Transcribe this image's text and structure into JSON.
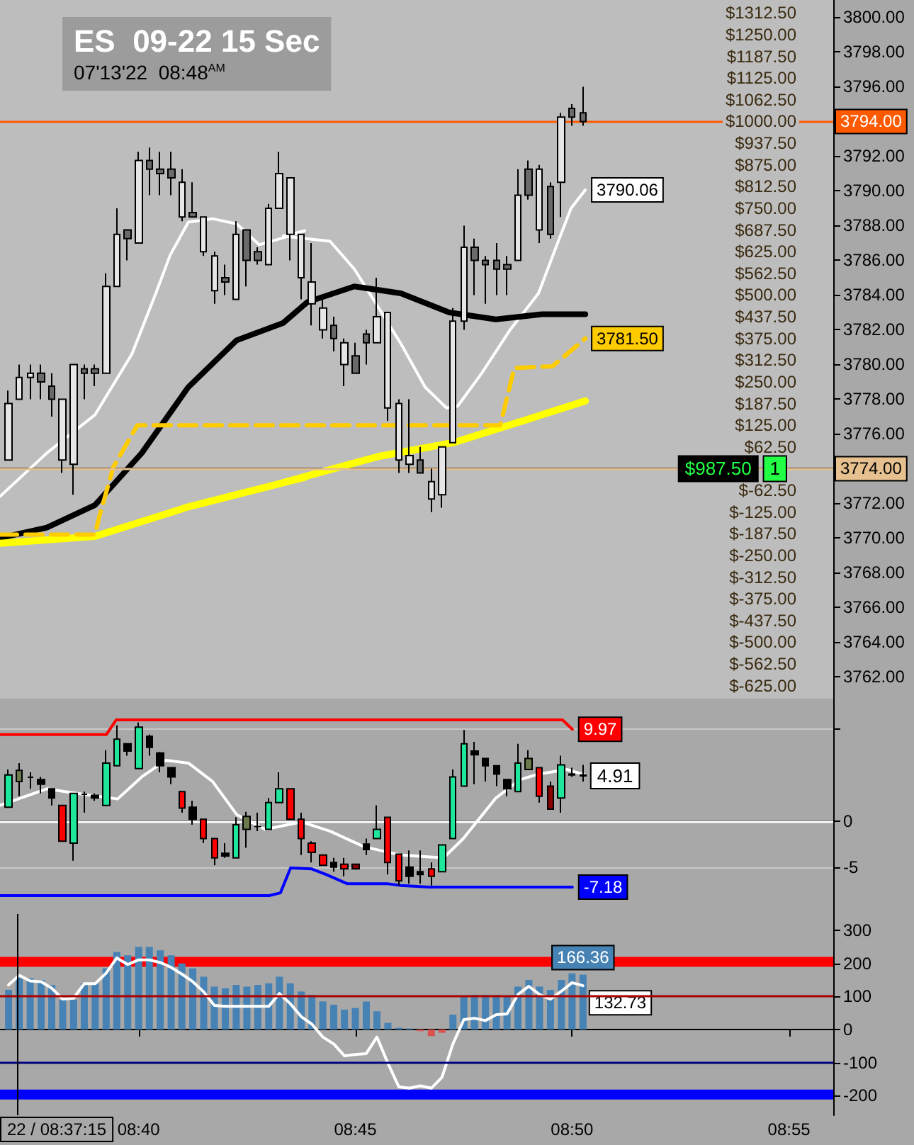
{
  "chart_data": [
    {
      "type": "candlestick",
      "title": "ES  09-22 15 Sec",
      "subtitle": "07'13'22  08:48$^{AM}$",
      "tick_labels": "y",
      "x": [
        8.6167,
        8.6208,
        8.625,
        8.6292,
        8.6333,
        8.6375,
        8.6417,
        8.6458,
        8.65,
        8.6542,
        8.6583,
        8.6625,
        8.6667,
        8.6708,
        8.675,
        8.6792,
        8.6833,
        8.6875,
        8.6917,
        8.6958,
        8.7,
        8.7042,
        8.7083,
        8.7125,
        8.7167,
        8.7208,
        8.725,
        8.7292,
        8.7333,
        8.7375,
        8.7417,
        8.7458,
        8.75,
        8.7542,
        8.7583,
        8.7625,
        8.7667,
        8.7708,
        8.775,
        8.7792,
        8.7833,
        8.7875,
        8.7917,
        8.7958,
        8.8,
        8.8042,
        8.8083,
        8.8125,
        8.8167,
        8.8208,
        8.825,
        8.8292,
        8.8333,
        8.8375
      ],
      "xlim": [
        8.6134,
        8.9337
      ],
      "ylim": [
        3760.75,
        3801
      ],
      "yticks": [
        {
          "value": 3762,
          "label": "3762.00"
        },
        {
          "value": 3764,
          "label": "3764.00"
        },
        {
          "value": 3766,
          "label": "3766.00"
        },
        {
          "value": 3768,
          "label": "3768.00"
        },
        {
          "value": 3770,
          "label": "3770.00"
        },
        {
          "value": 3772,
          "label": "3772.00"
        },
        {
          "value": 3774,
          "label": null
        },
        {
          "value": 3776,
          "label": "3776.00"
        },
        {
          "value": 3778,
          "label": "3778.00"
        },
        {
          "value": 3780,
          "label": "3780.00"
        },
        {
          "value": 3782,
          "label": "3782.00"
        },
        {
          "value": 3784,
          "label": "3784.00"
        },
        {
          "value": 3786,
          "label": "3786.00"
        },
        {
          "value": 3788,
          "label": "3788.00"
        },
        {
          "value": 3790,
          "label": "3790.00"
        },
        {
          "value": 3792,
          "label": "3792.00"
        },
        {
          "value": 3794,
          "label": null
        },
        {
          "value": 3796,
          "label": "3796.00"
        },
        {
          "value": 3798,
          "label": "3798.00"
        },
        {
          "value": 3800,
          "label": "3800.00"
        }
      ],
      "y2lim": [
        -662.5,
        1350
      ],
      "y2ticks": [
        {
          "value": -625,
          "label": "$-625.00"
        },
        {
          "value": -562.5,
          "label": "$-562.50"
        },
        {
          "value": -500,
          "label": "$-500.00"
        },
        {
          "value": -437.5,
          "label": "$-437.50"
        },
        {
          "value": -375,
          "label": "$-375.00"
        },
        {
          "value": -312.5,
          "label": "$-312.50"
        },
        {
          "value": -250,
          "label": "$-250.00"
        },
        {
          "value": -187.5,
          "label": "$-187.50"
        },
        {
          "value": -125,
          "label": "$-125.00"
        },
        {
          "value": -62.5,
          "label": "$-62.50"
        },
        {
          "value": 62.5,
          "label": "$62.50"
        },
        {
          "value": 125,
          "label": "$125.00"
        },
        {
          "value": 187.5,
          "label": "$187.50"
        },
        {
          "value": 250,
          "label": "$250.00"
        },
        {
          "value": 312.5,
          "label": "$312.50"
        },
        {
          "value": 375,
          "label": "$375.00"
        },
        {
          "value": 437.5,
          "label": "$437.50"
        },
        {
          "value": 500,
          "label": "$500.00"
        },
        {
          "value": 562.5,
          "label": "$562.50"
        },
        {
          "value": 625,
          "label": "$625.00"
        },
        {
          "value": 687.5,
          "label": "$687.50"
        },
        {
          "value": 750,
          "label": "$750.00"
        },
        {
          "value": 812.5,
          "label": "$812.50"
        },
        {
          "value": 875,
          "label": "$875.00"
        },
        {
          "value": 937.5,
          "label": "$937.50"
        },
        {
          "value": 1000,
          "label": "$1000.00"
        },
        {
          "value": 1062.5,
          "label": "$1062.50"
        },
        {
          "value": 1125,
          "label": "$1125.00"
        },
        {
          "value": 1187.5,
          "label": "$1187.50"
        },
        {
          "value": 1250,
          "label": "$1250.00"
        },
        {
          "value": 1312.5,
          "label": "$1312.50"
        }
      ],
      "series": [
        {
          "ohlc": [
            [
              3774.5,
              3778.5,
              3774.5,
              3777.75
            ],
            [
              3778,
              3780,
              3778,
              3779.25
            ],
            [
              3779.25,
              3780,
              3778,
              3779.5
            ],
            [
              3779.5,
              3780,
              3778,
              3779
            ],
            [
              3778.75,
              3779.5,
              3777,
              3778
            ],
            [
              3774.5,
              3778,
              3773.75,
              3778
            ],
            [
              3774.25,
              3780,
              3772.5,
              3780
            ],
            [
              3779.75,
              3780,
              3778,
              3779.5
            ],
            [
              3779.75,
              3780,
              3778.75,
              3779.5
            ],
            [
              3779.5,
              3785.25,
              3779.5,
              3784.5
            ],
            [
              3784.5,
              3789,
              3784.5,
              3787.5
            ],
            [
              3787.75,
              3787.75,
              3786,
              3787.25
            ],
            [
              3787,
              3792.25,
              3787,
              3791.75
            ],
            [
              3791.75,
              3792.5,
              3789.75,
              3791.25
            ],
            [
              3791.25,
              3792.25,
              3789.75,
              3791
            ],
            [
              3791.25,
              3792.25,
              3789.75,
              3790.75
            ],
            [
              3788.5,
              3791.25,
              3788.25,
              3790.5
            ],
            [
              3788.75,
              3790.5,
              3788.5,
              3788.5
            ],
            [
              3786.5,
              3788.5,
              3786.25,
              3788.5
            ],
            [
              3784.25,
              3786.5,
              3783.5,
              3786.25
            ],
            [
              3785,
              3785.75,
              3784,
              3784.75
            ],
            [
              3783.75,
              3788.25,
              3783.75,
              3787.5
            ],
            [
              3787.75,
              3787.75,
              3784.5,
              3786
            ],
            [
              3786.5,
              3786.75,
              3785.75,
              3786
            ],
            [
              3785.75,
              3789.25,
              3785.75,
              3789
            ],
            [
              3789,
              3792.25,
              3789,
              3791
            ],
            [
              3787.5,
              3790.75,
              3786,
              3790.75
            ],
            [
              3785,
              3787.5,
              3783.75,
              3787.5
            ],
            [
              3783.5,
              3787,
              3782.25,
              3784.75
            ],
            [
              3782,
              3784,
              3781.5,
              3783.25
            ],
            [
              3782.25,
              3782.75,
              3780.75,
              3781.5
            ],
            [
              3780,
              3781.5,
              3778.75,
              3781.25
            ],
            [
              3780.5,
              3781.25,
              3779.5,
              3779.5
            ],
            [
              3781.75,
              3782,
              3780,
              3781.25
            ],
            [
              3781.25,
              3785,
              3781.25,
              3782.75
            ],
            [
              3777.5,
              3783,
              3776.75,
              3783
            ],
            [
              3774.5,
              3778,
              3773.75,
              3777.75
            ],
            [
              3774.25,
              3778,
              3773.75,
              3774.75
            ],
            [
              3774.5,
              3775.25,
              3773.75,
              3773.75
            ],
            [
              3772.25,
              3774,
              3771.5,
              3773.25
            ],
            [
              3772.5,
              3775.25,
              3771.75,
              3775.25
            ],
            [
              3775.5,
              3783.25,
              3775.5,
              3782.5
            ],
            [
              3782.5,
              3788,
              3782,
              3786.75
            ],
            [
              3786.75,
              3787.25,
              3784,
              3786
            ],
            [
              3786,
              3786.25,
              3783.5,
              3785.75
            ],
            [
              3786,
              3787,
              3784,
              3785.5
            ],
            [
              3785.75,
              3786.25,
              3784,
              3785.5
            ],
            [
              3786,
              3791.25,
              3786,
              3789.75
            ],
            [
              3791.25,
              3791.75,
              3789.5,
              3789.75
            ],
            [
              3787.75,
              3791.5,
              3787,
              3791.25
            ],
            [
              3790.25,
              3790.5,
              3787.25,
              3787.5
            ],
            [
              3790.5,
              3794.5,
              3788.5,
              3794.25
            ],
            [
              3794.75,
              3795,
              3793.75,
              3794.25
            ],
            [
              3794.5,
              3796,
              3793.75,
              3794
            ]
          ],
          "colors": [
            "#e6e6e6",
            "#e6e6e6",
            "#e6e6e6",
            "#6a6a6a",
            "#6a6a6a",
            "#e6e6e6",
            "#e6e6e6",
            "#6a6a6a",
            "#6a6a6a",
            "#e6e6e6",
            "#e6e6e6",
            "#6a6a6a",
            "#e6e6e6",
            "#6a6a6a",
            "#6a6a6a",
            "#6a6a6a",
            "#e6e6e6",
            "#6a6a6a",
            "#e6e6e6",
            "#e6e6e6",
            "#6a6a6a",
            "#e6e6e6",
            "#6a6a6a",
            "#6a6a6a",
            "#e6e6e6",
            "#e6e6e6",
            "#e6e6e6",
            "#e6e6e6",
            "#e6e6e6",
            "#e6e6e6",
            "#6a6a6a",
            "#e6e6e6",
            "#6a6a6a",
            "#6a6a6a",
            "#e6e6e6",
            "#e6e6e6",
            "#e6e6e6",
            "#e6e6e6",
            "#6a6a6a",
            "#e6e6e6",
            "#e6e6e6",
            "#e6e6e6",
            "#e6e6e6",
            "#6a6a6a",
            "#6a6a6a",
            "#6a6a6a",
            "#6a6a6a",
            "#e6e6e6",
            "#6a6a6a",
            "#e6e6e6",
            "#6a6a6a",
            "#e6e6e6",
            "#6a6a6a",
            "#6a6a6a"
          ]
        },
        {
          "type": "line",
          "color": "#ffffff",
          "x": [
            8.6134,
            8.6314,
            8.6499,
            8.6641,
            8.6733,
            8.6788,
            8.6858,
            8.6951,
            8.7044,
            8.7131,
            8.7223,
            8.7305,
            8.7223,
            8.7403,
            8.7496,
            8.7588,
            8.7675,
            8.7768,
            8.785,
            8.7893,
            8.7986,
            8.8095,
            8.8204,
            8.8275,
            8.8329,
            8.8384
          ],
          "values": [
            3772.4,
            3774.9,
            3777.1,
            3780.6,
            3784.1,
            3786.3,
            3788.2,
            3788.4,
            3788.1,
            3786.9,
            3787.3,
            3787.7,
            3787.4,
            3787.1,
            3785.5,
            3783.3,
            3781.2,
            3778.7,
            3777.5,
            3777.6,
            3779.5,
            3782,
            3784.1,
            3786.9,
            3789,
            3790.06
          ],
          "value_labels": [
            null,
            null,
            null,
            null,
            null,
            null,
            null,
            null,
            null,
            null,
            null,
            null,
            null,
            null,
            null,
            null,
            null,
            null,
            null,
            null,
            null,
            null,
            null,
            null,
            null,
            "3790.06"
          ]
        },
        {
          "type": "line",
          "color": "#000000",
          "x": [
            8.6134,
            8.6314,
            8.6499,
            8.6679,
            8.6858,
            8.7044,
            8.7223,
            8.7316,
            8.7496,
            8.7675,
            8.7861,
            8.804,
            8.822,
            8.8384
          ],
          "values": [
            3770,
            3770.6,
            3771.9,
            3774.9,
            3778.7,
            3781.4,
            3782.4,
            3783.6,
            3784.5,
            3784.1,
            3783,
            3782.6,
            3782.9,
            3782.9
          ]
        },
        {
          "type": "line",
          "color": "#ffff00",
          "x": [
            8.6134,
            8.6499,
            8.6858,
            8.7305,
            8.7223,
            8.7588,
            8.7877,
            8.8133,
            8.8384
          ],
          "values": [
            3769.7,
            3770.1,
            3771.8,
            3773.5,
            3773.2,
            3774.7,
            3775.5,
            3776.7,
            3777.9
          ]
        },
        {
          "type": "line",
          "color": "#ffcc00",
          "line_style": "dashed",
          "x": [
            8.6134,
            8.6499,
            8.6515,
            8.657,
            8.6662,
            8.8057,
            8.8111,
            8.8258,
            8.8384
          ],
          "values": [
            3770.2,
            3770.2,
            3771.2,
            3774.1,
            3776.5,
            3776.5,
            3779.8,
            3779.9,
            3781.5
          ],
          "value_labels": [
            null,
            null,
            null,
            null,
            null,
            null,
            null,
            null,
            "3781.50"
          ]
        }
      ],
      "ref_lines": [
        {
          "axis": "y",
          "value": 3794,
          "label": "3794.00",
          "color": "#ff5a00"
        },
        {
          "axis": "y",
          "value": 3774,
          "label": "3774.00",
          "color": "#e6c08f"
        }
      ],
      "annotations": [
        {
          "text": "$987.50",
          "x": 8.8895,
          "y": 3774
        },
        {
          "text": "1",
          "x": 8.9113,
          "y": 3774
        }
      ]
    },
    {
      "type": "candlestick",
      "tick_labels": "y",
      "grid": "y",
      "x": [
        8.6167,
        8.6208,
        8.625,
        8.6292,
        8.6333,
        8.6375,
        8.6417,
        8.6458,
        8.65,
        8.6542,
        8.6583,
        8.6625,
        8.6667,
        8.6708,
        8.675,
        8.6792,
        8.6833,
        8.6875,
        8.6917,
        8.6958,
        8.7,
        8.7042,
        8.7083,
        8.7125,
        8.7167,
        8.7208,
        8.725,
        8.7292,
        8.7333,
        8.7375,
        8.7417,
        8.7458,
        8.75,
        8.7542,
        8.7583,
        8.7625,
        8.7667,
        8.7708,
        8.775,
        8.7792,
        8.7833,
        8.7875,
        8.7917,
        8.7958,
        8.8,
        8.8042,
        8.8083,
        8.8125,
        8.8167,
        8.8208,
        8.825,
        8.8292,
        8.8333,
        8.8375
      ],
      "xlim": [
        8.6134,
        8.9337
      ],
      "ylim": [
        -10.1,
        13.3
      ],
      "yticks": [
        -5,
        0,
        {
          "value": 10,
          "label": null
        }
      ],
      "series": [
        {
          "ohlc": [
            [
              1.5,
              5.6,
              1.5,
              5
            ],
            [
              5.5,
              6.3,
              2.7,
              4.3
            ],
            [
              4.75,
              5.3,
              3.5,
              4.75
            ],
            [
              4.5,
              4.8,
              3,
              4
            ],
            [
              3.5,
              3.5,
              1.7,
              2.5
            ],
            [
              1.7,
              1.7,
              -2.2,
              -2.2
            ],
            [
              -2.4,
              3,
              -4.3,
              3
            ],
            [
              2.9,
              3.2,
              0.9,
              2.9
            ],
            [
              2.8,
              3,
              2.2,
              2.5
            ],
            [
              1.7,
              7.7,
              1.7,
              6.3
            ],
            [
              6,
              10.4,
              6,
              8.9
            ],
            [
              8.4,
              8.4,
              7.1,
              7.6
            ],
            [
              5.7,
              10.7,
              5.7,
              10.2
            ],
            [
              9.2,
              9.4,
              7.1,
              8
            ],
            [
              7.4,
              7.5,
              5.3,
              6
            ],
            [
              5.8,
              5.8,
              4,
              4.8
            ],
            [
              3.2,
              3.2,
              0.9,
              1.4
            ],
            [
              1.5,
              2.2,
              -0.4,
              0.2
            ],
            [
              0.2,
              0.2,
              -2.4,
              -1.9
            ],
            [
              -1.9,
              -1.9,
              -4.8,
              -4
            ],
            [
              -3.5,
              -2.4,
              -4,
              -3.8
            ],
            [
              -4,
              0.4,
              -4,
              -0.4
            ],
            [
              0.5,
              1,
              -2.9,
              -0.9
            ],
            [
              -0.6,
              0.9,
              -1.1,
              -0.6
            ],
            [
              -0.9,
              2.5,
              -0.9,
              2
            ],
            [
              2,
              5.3,
              2,
              3.5
            ],
            [
              3.5,
              3.5,
              0.2,
              0.2
            ],
            [
              0.2,
              0.9,
              -3.7,
              -1.9
            ],
            [
              -2.4,
              -2.2,
              -4.5,
              -3.4
            ],
            [
              -3.7,
              -3.7,
              -4.8,
              -4.8
            ],
            [
              -4.5,
              -4,
              -5.5,
              -5
            ],
            [
              -4.7,
              -4,
              -6,
              -5.2
            ],
            [
              -4.7,
              -4.7,
              -5.2,
              -5.2
            ],
            [
              -2.5,
              -1.9,
              -3.7,
              -3.1
            ],
            [
              -1.9,
              1.7,
              -1.9,
              -0.9
            ],
            [
              0.4,
              0.4,
              -5.8,
              -4.5
            ],
            [
              -3.6,
              -3.6,
              -7,
              -6.5
            ],
            [
              -5,
              -3.2,
              -6.8,
              -6
            ],
            [
              -5.5,
              -3.2,
              -6.8,
              -5.8
            ],
            [
              -5.2,
              -4.5,
              -7,
              -6
            ],
            [
              -5.5,
              -2.6,
              -5.5,
              -2.6
            ],
            [
              -1.9,
              5.6,
              -1.9,
              4.8
            ],
            [
              3.8,
              9.9,
              3.8,
              8.4
            ],
            [
              7.6,
              8.6,
              4,
              7.2
            ],
            [
              6.8,
              6.8,
              4.3,
              6
            ],
            [
              6,
              6,
              3.8,
              5.1
            ],
            [
              4.5,
              4.5,
              2.7,
              3.5
            ],
            [
              3.2,
              8.4,
              3.2,
              6.3
            ],
            [
              6.8,
              7.7,
              5.6,
              5.6
            ],
            [
              5.8,
              5.8,
              2,
              2.7
            ],
            [
              3.8,
              4.3,
              1.3,
              1.3
            ],
            [
              2.5,
              7.1,
              0.9,
              6.1
            ],
            [
              5.1,
              5.8,
              4.8,
              5
            ],
            [
              5,
              6.1,
              4.3,
              4.91
            ]
          ],
          "colors": [
            "#1ee69b",
            "#6b7a4a",
            "#000000",
            "#000000",
            "#000000",
            "#ff0000",
            "#1ee69b",
            "#000000",
            "#000000",
            "#1ee69b",
            "#1ee69b",
            "#000000",
            "#1ee69b",
            "#000000",
            "#000000",
            "#000000",
            "#ff0000",
            "#000000",
            "#ff0000",
            "#ff0000",
            "#000000",
            "#1ee69b",
            "#6b7a4a",
            "#000000",
            "#1ee69b",
            "#1ee69b",
            "#ff0000",
            "#ff0000",
            "#ff0000",
            "#ff0000",
            "#000000",
            "#ff0000",
            "#8b0000",
            "#000000",
            "#1ee69b",
            "#ff0000",
            "#ff0000",
            "#000000",
            "#000000",
            "#ff0000",
            "#1ee69b",
            "#1ee69b",
            "#1ee69b",
            "#000000",
            "#000000",
            "#000000",
            "#000000",
            "#1ee69b",
            "#6b7a4a",
            "#ff0000",
            "#8b0000",
            "#1ee69b",
            "#000000",
            "#000000"
          ]
        },
        {
          "type": "line",
          "color": "#ff0000",
          "x": [
            8.6134,
            8.6543,
            8.6581,
            8.8296,
            8.8334
          ],
          "values": [
            9.4,
            9.4,
            11,
            11,
            9.97
          ],
          "value_labels": [
            null,
            null,
            null,
            null,
            "9.97"
          ]
        },
        {
          "type": "line",
          "color": "#0000ff",
          "x": [
            8.6134,
            8.7169,
            8.7212,
            8.7251,
            8.7332,
            8.7387,
            8.7468,
            8.7621,
            8.7675,
            8.7784,
            8.8334
          ],
          "values": [
            -8.1,
            -8.1,
            -7.8,
            -5.1,
            -5.2,
            -5.8,
            -6.8,
            -6.8,
            -7,
            -7.18,
            -7.18
          ],
          "value_labels": [
            null,
            null,
            null,
            null,
            null,
            null,
            null,
            null,
            null,
            null,
            "-7.18"
          ]
        },
        {
          "type": "line",
          "color": "#ffffff",
          "x": [
            8.6134,
            8.6314,
            8.6406,
            8.6586,
            8.6679,
            8.6771,
            8.6858,
            8.6951,
            8.7044,
            8.7153,
            8.7294,
            8.7403,
            8.7534,
            8.7675,
            8.7839,
            8.7915,
            8.804,
            8.8133,
            8.8204,
            8.8313,
            8.8384
          ],
          "values": [
            1.7,
            3.5,
            3.1,
            2.4,
            4.8,
            6.6,
            6.3,
            4.3,
            0.7,
            -0.9,
            -0.1,
            -1.1,
            -2.8,
            -3.7,
            -4,
            -1.9,
            2.5,
            4.5,
            5.1,
            5.6,
            5
          ]
        }
      ],
      "ref_lines": [
        {
          "axis": "y",
          "value": 0,
          "color": "#ffffff"
        }
      ],
      "annotations": [
        {
          "text": "4.91",
          "x": 8.8375,
          "y": 4.91
        }
      ]
    },
    {
      "type": "bar",
      "x": [
        8.6167,
        8.6208,
        8.625,
        8.6292,
        8.6333,
        8.6375,
        8.6417,
        8.6458,
        8.65,
        8.6542,
        8.6583,
        8.6625,
        8.6667,
        8.6708,
        8.675,
        8.6792,
        8.6833,
        8.6875,
        8.6917,
        8.6958,
        8.7,
        8.7042,
        8.7083,
        8.7125,
        8.7167,
        8.7208,
        8.725,
        8.7292,
        8.7333,
        8.7375,
        8.7417,
        8.7458,
        8.75,
        8.7542,
        8.7583,
        8.7625,
        8.7667,
        8.7708,
        8.775,
        8.7792,
        8.7833,
        8.7875,
        8.7917,
        8.7958,
        8.8,
        8.8042,
        8.8083,
        8.8125,
        8.8167,
        8.8208,
        8.825,
        8.8292,
        8.8333,
        8.8375
      ],
      "xlim": [
        8.6134,
        8.9337
      ],
      "xticks": [
        {
          "value": 8.6667,
          "label": "08:40"
        },
        {
          "value": 8.75,
          "label": "08:45"
        },
        {
          "value": 8.8333,
          "label": "08:50"
        },
        {
          "value": 8.9167,
          "label": "08:55"
        }
      ],
      "ylim": [
        -260,
        350
      ],
      "yticks": [
        -200,
        -100,
        0,
        100,
        200,
        300
      ],
      "series": [
        {
          "values": [
            120,
            160,
            155,
            150,
            135,
            90,
            90,
            140,
            140,
            185,
            235,
            225,
            250,
            250,
            240,
            225,
            200,
            185,
            160,
            130,
            125,
            135,
            130,
            135,
            140,
            160,
            140,
            115,
            105,
            85,
            75,
            60,
            65,
            85,
            55,
            20,
            5,
            3,
            -5,
            -20,
            -10,
            45,
            100,
            105,
            105,
            105,
            100,
            130,
            150,
            130,
            120,
            150,
            170,
            166.36
          ],
          "colors": [
            "#4682b4",
            "#4682b4",
            "#4682b4",
            "#4682b4",
            "#4682b4",
            "#4682b4",
            "#4682b4",
            "#4682b4",
            "#4682b4",
            "#4682b4",
            "#4682b4",
            "#4682b4",
            "#4682b4",
            "#4682b4",
            "#4682b4",
            "#4682b4",
            "#4682b4",
            "#4682b4",
            "#4682b4",
            "#4682b4",
            "#4682b4",
            "#4682b4",
            "#4682b4",
            "#4682b4",
            "#4682b4",
            "#4682b4",
            "#4682b4",
            "#4682b4",
            "#4682b4",
            "#4682b4",
            "#4682b4",
            "#4682b4",
            "#4682b4",
            "#4682b4",
            "#4682b4",
            "#4682b4",
            "#4682b4",
            "#4682b4",
            "#d9534f",
            "#d9534f",
            "#d9534f",
            "#4682b4",
            "#4682b4",
            "#4682b4",
            "#4682b4",
            "#4682b4",
            "#4682b4",
            "#4682b4",
            "#4682b4",
            "#4682b4",
            "#4682b4",
            "#4682b4",
            "#4682b4",
            "#4682b4"
          ],
          "value_labels": [
            null,
            null,
            null,
            null,
            null,
            null,
            null,
            null,
            null,
            null,
            null,
            null,
            null,
            null,
            null,
            null,
            null,
            null,
            null,
            null,
            null,
            null,
            null,
            null,
            null,
            null,
            null,
            null,
            null,
            null,
            null,
            null,
            null,
            null,
            null,
            null,
            null,
            null,
            null,
            null,
            null,
            null,
            null,
            null,
            null,
            null,
            null,
            null,
            null,
            null,
            null,
            null,
            null,
            "166.36"
          ]
        },
        {
          "type": "line",
          "color": "#ffffff",
          "values": [
            135,
            164,
            147,
            145,
            125,
            92,
            95,
            139,
            139,
            171,
            217,
            197,
            211,
            211,
            203,
            188,
            168,
            145,
            114,
            73,
            70,
            70,
            70,
            70,
            70,
            109,
            78,
            39,
            16,
            -23,
            -44,
            -80,
            -76,
            -73,
            -23,
            -102,
            -174,
            -178,
            -171,
            -178,
            -145,
            -44,
            30,
            34,
            27,
            45,
            47,
            106,
            131,
            106,
            92,
            116,
            142,
            132.73
          ],
          "value_labels": [
            null,
            null,
            null,
            null,
            null,
            null,
            null,
            null,
            null,
            null,
            null,
            null,
            null,
            null,
            null,
            null,
            null,
            null,
            null,
            null,
            null,
            null,
            null,
            null,
            null,
            null,
            null,
            null,
            null,
            null,
            null,
            null,
            null,
            null,
            null,
            null,
            null,
            null,
            null,
            null,
            null,
            null,
            null,
            null,
            null,
            null,
            null,
            null,
            null,
            null,
            null,
            null,
            null,
            "132.73"
          ]
        }
      ],
      "ref_lines": [
        {
          "axis": "y",
          "value": 100,
          "color": "#aa0000"
        },
        {
          "axis": "y",
          "value": -100,
          "color": "#000080"
        },
        {
          "axis": "x",
          "value": 8.620833,
          "color": "#000000"
        }
      ],
      "annotations": [
        "22 / 08:37:15"
      ],
      "bands": [
        {
          "axis": "y",
          "from": 190,
          "to": 220,
          "color": "#ff0000"
        },
        {
          "axis": "y",
          "from": -212,
          "to": -182,
          "color": "#0000ff"
        }
      ]
    }
  ]
}
